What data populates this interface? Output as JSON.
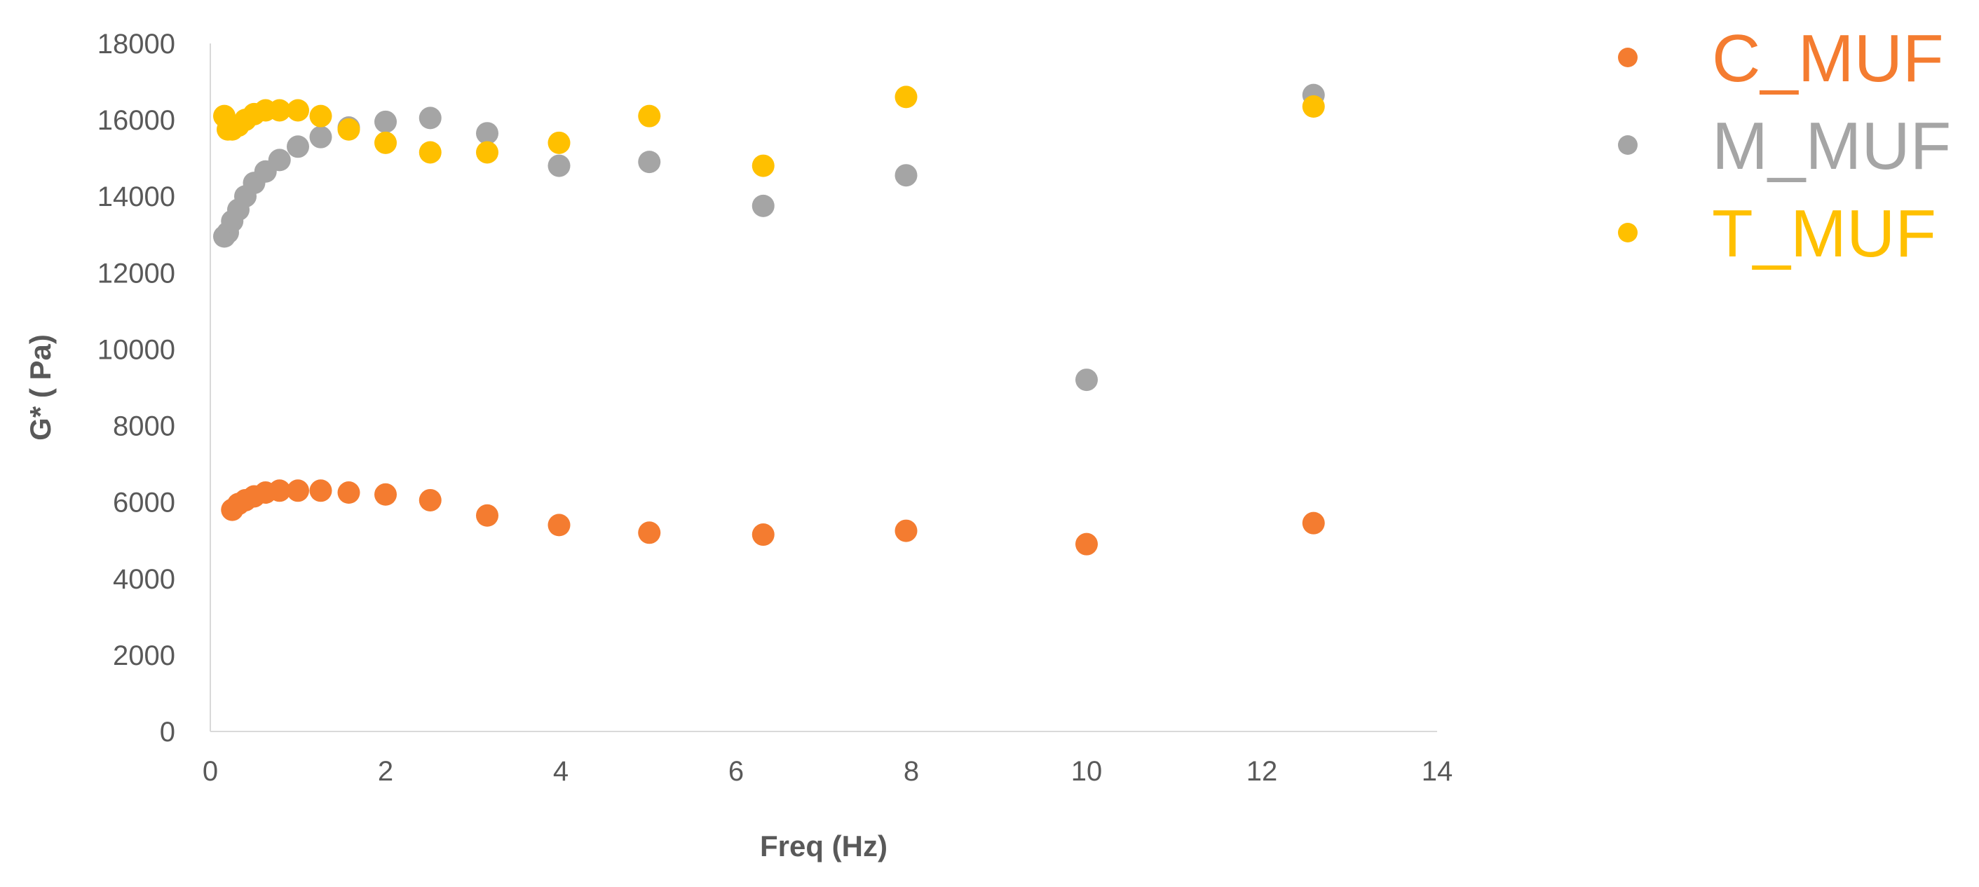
{
  "chart_data": {
    "type": "scatter",
    "xlabel": "Freq (Hz)",
    "ylabel": "G* ( Pa)",
    "xlim": [
      0,
      14
    ],
    "ylim": [
      0,
      18000
    ],
    "x_ticks": [
      0,
      2,
      4,
      6,
      8,
      10,
      12,
      14
    ],
    "y_ticks": [
      0,
      2000,
      4000,
      6000,
      8000,
      10000,
      12000,
      14000,
      16000,
      18000
    ],
    "grid": false,
    "legend_position": "right",
    "series": [
      {
        "name": "C_MUF",
        "color": "#F47C30",
        "x": [
          0.25,
          0.32,
          0.4,
          0.5,
          0.63,
          0.79,
          1.0,
          1.26,
          1.58,
          2.0,
          2.51,
          3.16,
          3.98,
          5.01,
          6.31,
          7.94,
          10.0,
          12.59
        ],
        "y": [
          5800,
          5950,
          6050,
          6150,
          6250,
          6300,
          6300,
          6300,
          6250,
          6200,
          6050,
          5650,
          5400,
          5200,
          5150,
          5250,
          4900,
          5450
        ]
      },
      {
        "name": "M_MUF",
        "color": "#A5A5A5",
        "x": [
          0.16,
          0.2,
          0.25,
          0.32,
          0.4,
          0.5,
          0.63,
          0.79,
          1.0,
          1.26,
          1.58,
          2.0,
          2.51,
          3.16,
          3.98,
          5.01,
          6.31,
          7.94,
          10.0,
          12.59
        ],
        "y": [
          12950,
          13050,
          13350,
          13650,
          14000,
          14350,
          14650,
          14950,
          15300,
          15550,
          15800,
          15950,
          16050,
          15650,
          14800,
          14900,
          13750,
          14550,
          9200,
          16650
        ]
      },
      {
        "name": "T_MUF",
        "color": "#FFC000",
        "x": [
          0.16,
          0.2,
          0.25,
          0.32,
          0.4,
          0.5,
          0.63,
          0.79,
          1.0,
          1.26,
          1.58,
          2.0,
          2.51,
          3.16,
          3.98,
          5.01,
          6.31,
          7.94,
          12.59
        ],
        "y": [
          16100,
          15750,
          15750,
          15850,
          16000,
          16150,
          16250,
          16250,
          16250,
          16100,
          15750,
          15400,
          15150,
          15150,
          15400,
          16100,
          14800,
          16600,
          16350
        ]
      }
    ]
  }
}
